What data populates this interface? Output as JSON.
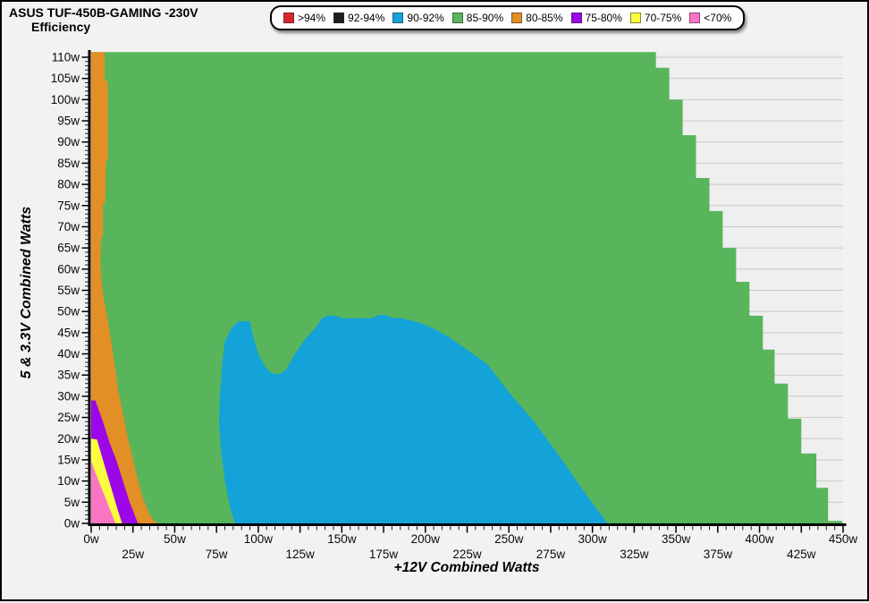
{
  "chart_data": {
    "type": "heatmap",
    "title": "ASUS TUF-450B-GAMING -230V",
    "subtitle": "Efficiency",
    "xlabel": "+12V Combined Watts",
    "ylabel": "5 & 3.3V Combined Watts",
    "plot_bg": "#efefef",
    "grid_color": "#c9c9c9",
    "axis_color": "#000000",
    "x_axis": {
      "unit": "w",
      "range": [
        0,
        450
      ],
      "major_ticks": [
        0,
        25,
        50,
        75,
        100,
        125,
        150,
        175,
        200,
        225,
        250,
        275,
        300,
        325,
        350,
        375,
        400,
        425,
        450
      ],
      "minor_step": 5,
      "stagger_labels": true
    },
    "y_axis": {
      "unit": "w",
      "range": [
        0,
        111.2
      ],
      "major_ticks": [
        0,
        5,
        10,
        15,
        20,
        25,
        30,
        35,
        40,
        45,
        50,
        55,
        60,
        65,
        70,
        75,
        80,
        85,
        90,
        95,
        100,
        105,
        110
      ],
      "minor_step": 1
    },
    "legend": {
      "items": [
        {
          "label": ">94%",
          "color": "#d8262c"
        },
        {
          "label": "92-94%",
          "color": "#1f1f1f"
        },
        {
          "label": "90-92%",
          "color": "#14a3d8"
        },
        {
          "label": "85-90%",
          "color": "#58b55c"
        },
        {
          "label": "80-85%",
          "color": "#e28f26"
        },
        {
          "label": "75-80%",
          "color": "#9b07e8"
        },
        {
          "label": "70-75%",
          "color": "#fbfb3f"
        },
        {
          "label": "<70%",
          "color": "#fb74c4"
        }
      ]
    },
    "regions": [
      {
        "name": "85-90pct-envelope",
        "efficiency": "85-90%",
        "color": "#58b55c",
        "points": [
          [
            0,
            111.2
          ],
          [
            338,
            111.2
          ],
          [
            338,
            107.5
          ],
          [
            346,
            107.5
          ],
          [
            346,
            100
          ],
          [
            354,
            100
          ],
          [
            354,
            91.6
          ],
          [
            362,
            91.6
          ],
          [
            362,
            81.5
          ],
          [
            370,
            81.5
          ],
          [
            370,
            73.7
          ],
          [
            378,
            73.7
          ],
          [
            378,
            65
          ],
          [
            386,
            65
          ],
          [
            386,
            57
          ],
          [
            394,
            57
          ],
          [
            394,
            49
          ],
          [
            402,
            49
          ],
          [
            402,
            41
          ],
          [
            409,
            41
          ],
          [
            409,
            33
          ],
          [
            417,
            33
          ],
          [
            417,
            24.7
          ],
          [
            425,
            24.7
          ],
          [
            425,
            16.5
          ],
          [
            434,
            16.5
          ],
          [
            434,
            8.4
          ],
          [
            441,
            8.4
          ],
          [
            441,
            0.6
          ],
          [
            449.5,
            0.6
          ],
          [
            449.5,
            0
          ],
          [
            0,
            0
          ]
        ]
      },
      {
        "name": "80-85pct-band",
        "efficiency": "80-85%",
        "color": "#e28f26",
        "points": [
          [
            0,
            111.2
          ],
          [
            8,
            111.2
          ],
          [
            8,
            105
          ],
          [
            10,
            104
          ],
          [
            10,
            86
          ],
          [
            8.8,
            85
          ],
          [
            8.5,
            76
          ],
          [
            7,
            75
          ],
          [
            7,
            68
          ],
          [
            5.8,
            67
          ],
          [
            5.5,
            62
          ],
          [
            6,
            58
          ],
          [
            7.5,
            53
          ],
          [
            9.5,
            49
          ],
          [
            11.5,
            44
          ],
          [
            13.5,
            39
          ],
          [
            15,
            35
          ],
          [
            16.2,
            31
          ],
          [
            17.5,
            29
          ],
          [
            19.5,
            25
          ],
          [
            22,
            20
          ],
          [
            24.5,
            16
          ],
          [
            27.5,
            11
          ],
          [
            31,
            6
          ],
          [
            35,
            2
          ],
          [
            39,
            0
          ],
          [
            0,
            0
          ]
        ]
      },
      {
        "name": "75-80pct-band",
        "efficiency": "75-80%",
        "color": "#9b07e8",
        "points": [
          [
            0,
            29
          ],
          [
            2.5,
            29
          ],
          [
            7,
            24
          ],
          [
            11,
            19
          ],
          [
            15,
            15
          ],
          [
            19,
            10
          ],
          [
            23,
            5
          ],
          [
            28,
            0
          ],
          [
            0,
            0
          ]
        ]
      },
      {
        "name": "70-75pct-band",
        "efficiency": "70-75%",
        "color": "#fbfb3f",
        "points": [
          [
            0,
            20
          ],
          [
            3.5,
            19.8
          ],
          [
            7,
            15
          ],
          [
            10,
            11
          ],
          [
            13,
            7
          ],
          [
            16,
            3
          ],
          [
            18.5,
            0
          ],
          [
            0,
            0
          ]
        ]
      },
      {
        "name": "under70pct",
        "efficiency": "<70%",
        "color": "#fb74c4",
        "points": [
          [
            0,
            14.8
          ],
          [
            1.5,
            13
          ],
          [
            5,
            9.5
          ],
          [
            8,
            6.5
          ],
          [
            11,
            3.5
          ],
          [
            14.5,
            0
          ],
          [
            0,
            0
          ]
        ]
      },
      {
        "name": "90-92pct-blob",
        "efficiency": "90-92%",
        "color": "#14a3d8",
        "points": [
          [
            86,
            0
          ],
          [
            83,
            4
          ],
          [
            80,
            10
          ],
          [
            78,
            16
          ],
          [
            76.5,
            23.5
          ],
          [
            77,
            30
          ],
          [
            78.5,
            38
          ],
          [
            80,
            43
          ],
          [
            84,
            46
          ],
          [
            88,
            47.7
          ],
          [
            95,
            47.7
          ],
          [
            97,
            44
          ],
          [
            100,
            40
          ],
          [
            104,
            37
          ],
          [
            108,
            35.4
          ],
          [
            113,
            35.2
          ],
          [
            117,
            36.5
          ],
          [
            122,
            40
          ],
          [
            128,
            43.5
          ],
          [
            134,
            46
          ],
          [
            138,
            48.3
          ],
          [
            141,
            49
          ],
          [
            146,
            49
          ],
          [
            150,
            48.4
          ],
          [
            168,
            48.4
          ],
          [
            172,
            49.2
          ],
          [
            176,
            49.2
          ],
          [
            180,
            48.5
          ],
          [
            185,
            48.5
          ],
          [
            190,
            48
          ],
          [
            197,
            47.3
          ],
          [
            205,
            46
          ],
          [
            214,
            44
          ],
          [
            225,
            41
          ],
          [
            237,
            37.6
          ],
          [
            250,
            31
          ],
          [
            265,
            24
          ],
          [
            280,
            16
          ],
          [
            295,
            7.5
          ],
          [
            309,
            0
          ]
        ]
      }
    ]
  }
}
